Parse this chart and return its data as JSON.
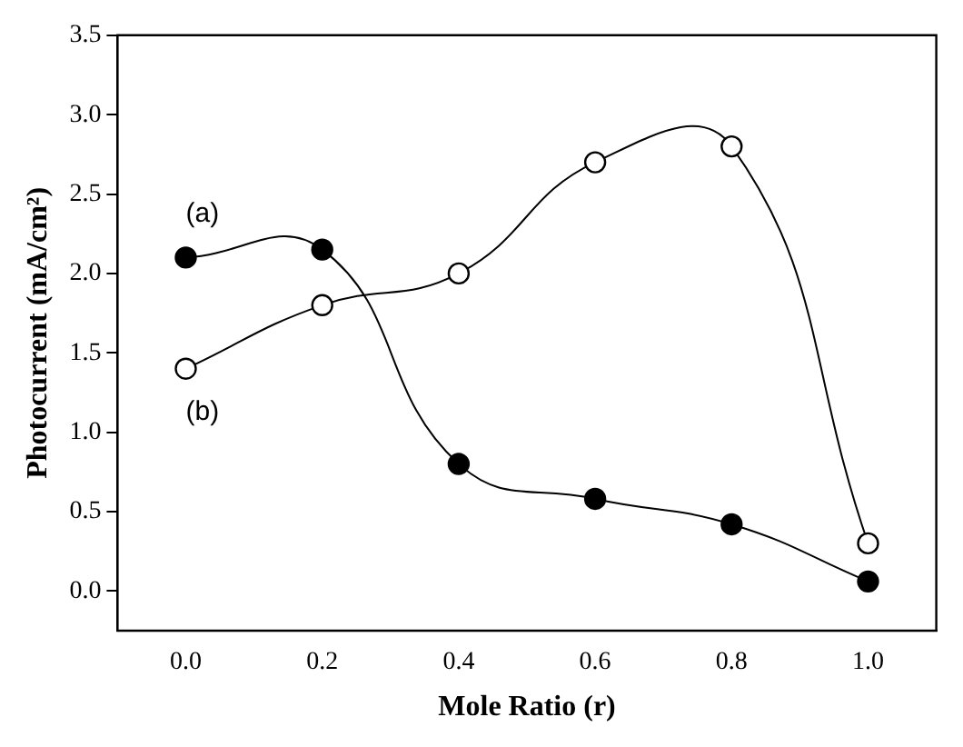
{
  "chart_data": {
    "type": "line",
    "xlabel": "Mole Ratio (r)",
    "ylabel": "Photocurrent (mA/cm²)",
    "x": [
      0,
      0.2,
      0.4,
      0.6,
      0.8,
      1.0
    ],
    "series": [
      {
        "name": "(a)",
        "color": "#000000",
        "values": [
          2.1,
          2.15,
          0.8,
          0.58,
          0.42,
          0.06
        ]
      },
      {
        "name": "(b)",
        "color": "#000000",
        "values": [
          1.4,
          1.8,
          2.0,
          2.7,
          2.8,
          0.3
        ]
      }
    ],
    "xlim": [
      -0.1,
      1.1
    ],
    "ylim": [
      -0.25,
      3.5
    ],
    "xticks": [
      {
        "value": 0,
        "label": "0.0"
      },
      {
        "value": 0.2,
        "label": "0.2"
      },
      {
        "value": 0.4,
        "label": "0.4"
      },
      {
        "value": 0.6,
        "label": "0.6"
      },
      {
        "value": 0.8,
        "label": "0.8"
      },
      {
        "value": 1.0,
        "label": "1.0"
      }
    ],
    "yticks": [
      {
        "value": 0,
        "label": "0.0"
      },
      {
        "value": 0.5,
        "label": "0.5"
      },
      {
        "value": 1.0,
        "label": "1.0"
      },
      {
        "value": 1.5,
        "label": "1.5"
      },
      {
        "value": 2.0,
        "label": "2.0"
      },
      {
        "value": 2.5,
        "label": "2.5"
      },
      {
        "value": 3.0,
        "label": "3.0"
      },
      {
        "value": 3.5,
        "label": "3.5"
      }
    ],
    "grid": false,
    "legend": false,
    "marker": "circle",
    "line_style": "solid"
  }
}
